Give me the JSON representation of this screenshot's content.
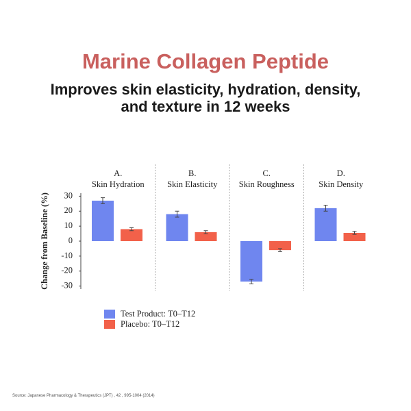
{
  "chart_data": {
    "type": "bar",
    "title": "Marine Collagen Peptide",
    "subtitle": "Improves skin elasticity, hydration, density, and texture in 12 weeks",
    "category_letters": [
      "A.",
      "B.",
      "C.",
      "D."
    ],
    "categories": [
      "Skin Hydration",
      "Skin Elasticity",
      "Skin Roughness",
      "Skin Density"
    ],
    "y_label": "Change from Baseline (%)",
    "series": [
      {
        "name": "Test Product: T0–T12",
        "color": "#6f86ef",
        "values": [
          27,
          18,
          -27,
          22
        ],
        "errors": [
          2,
          2,
          1.5,
          2
        ]
      },
      {
        "name": "Placebo: T0–T12",
        "color": "#f2614a",
        "values": [
          8,
          6,
          -6,
          5.5
        ],
        "errors": [
          1,
          1,
          1,
          1
        ]
      }
    ],
    "ylim": [
      -32,
      32
    ],
    "yticks": [
      30,
      20,
      10,
      0,
      -10,
      -20,
      -30
    ],
    "source": "Source: Japanese Pharmacology & Therapeutics (JPT) , 42 , 995-1004 (2014)"
  }
}
